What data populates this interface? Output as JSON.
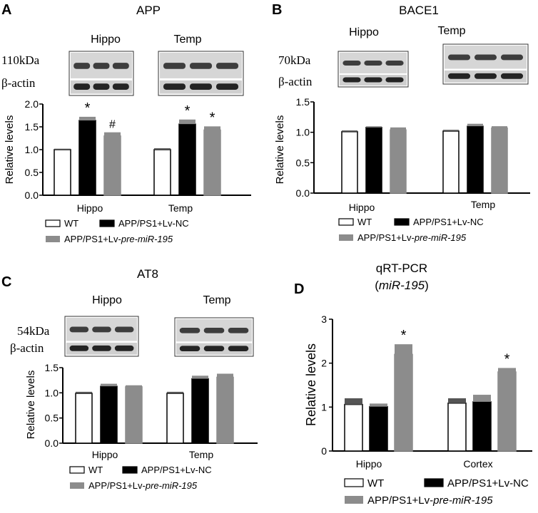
{
  "colors": {
    "wt": "#ffffff",
    "nc": "#000000",
    "mir": "#8c8c8c",
    "err": "#8c8c8c"
  },
  "legend": {
    "wt": "WT",
    "nc": "APP/PS1+Lv-NC",
    "mir_prefix": "APP/PS1+Lv-",
    "mir_italic": "pre-miR-195"
  },
  "panels": [
    {
      "id": "A",
      "label": "A",
      "title": "APP",
      "title_sub": "",
      "blot": {
        "regions": [
          "Hippo",
          "Temp"
        ],
        "kda": "110kDa",
        "actin": "β-actin"
      },
      "chart_data": {
        "type": "bar",
        "categories": [
          "Hippo",
          "Temp"
        ],
        "ylabel": "Relative levels",
        "ylim": [
          0,
          2.0
        ],
        "yticks": [
          "0.0",
          "0.5",
          "1.0",
          "1.5",
          "2.0"
        ],
        "series": [
          {
            "name": "WT",
            "values": [
              1.0,
              1.0
            ],
            "errors": [
              0.02,
              0.03
            ]
          },
          {
            "name": "APP/PS1+Lv-NC",
            "values": [
              1.64,
              1.56
            ],
            "errors": [
              0.08,
              0.1
            ]
          },
          {
            "name": "APP/PS1+Lv-pre-miR-195",
            "values": [
              1.3,
              1.43
            ],
            "errors": [
              0.08,
              0.08
            ]
          }
        ],
        "annotations": [
          [
            "",
            "*",
            "#"
          ],
          [
            "",
            "*",
            "*"
          ]
        ]
      }
    },
    {
      "id": "B",
      "label": "B",
      "title": "BACE1",
      "title_sub": "",
      "blot": {
        "regions": [
          "Hippo",
          "Temp"
        ],
        "kda": "70kDa",
        "actin": "β-actin"
      },
      "chart_data": {
        "type": "bar",
        "categories": [
          "Hippo",
          "Temp"
        ],
        "ylabel": "Relative levels",
        "ylim": [
          0,
          1.5
        ],
        "yticks": [
          "0.0",
          "0.5",
          "1.0",
          "1.5"
        ],
        "series": [
          {
            "name": "WT",
            "values": [
              1.01,
              1.02
            ],
            "errors": [
              0.02,
              0.02
            ]
          },
          {
            "name": "APP/PS1+Lv-NC",
            "values": [
              1.08,
              1.1
            ],
            "errors": [
              0.02,
              0.04
            ]
          },
          {
            "name": "APP/PS1+Lv-pre-miR-195",
            "values": [
              1.04,
              1.07
            ],
            "errors": [
              0.04,
              0.03
            ]
          }
        ],
        "annotations": [
          [
            "",
            "",
            ""
          ],
          [
            "",
            "",
            ""
          ]
        ]
      }
    },
    {
      "id": "C",
      "label": "C",
      "title": "AT8",
      "title_sub": "",
      "blot": {
        "regions": [
          "Hippo",
          "Temp"
        ],
        "kda": "54kDa",
        "actin": "β-actin"
      },
      "chart_data": {
        "type": "bar",
        "categories": [
          "Hippo",
          "Temp"
        ],
        "ylabel": "Relative levels",
        "ylim": [
          0,
          1.5
        ],
        "yticks": [
          "0.0",
          "0.5",
          "1.0",
          "1.5"
        ],
        "series": [
          {
            "name": "WT",
            "values": [
              0.99,
              0.99
            ],
            "errors": [
              0.03,
              0.03
            ]
          },
          {
            "name": "APP/PS1+Lv-NC",
            "values": [
              1.13,
              1.28
            ],
            "errors": [
              0.05,
              0.06
            ]
          },
          {
            "name": "APP/PS1+Lv-pre-miR-195",
            "values": [
              1.12,
              1.31
            ],
            "errors": [
              0.03,
              0.07
            ]
          }
        ],
        "annotations": [
          [
            "",
            "",
            ""
          ],
          [
            "",
            "",
            ""
          ]
        ]
      }
    },
    {
      "id": "D",
      "label": "D",
      "title": "qRT-PCR",
      "title_sub": "miR-195",
      "blot": null,
      "chart_data": {
        "type": "bar",
        "categories": [
          "Hippo",
          "Cortex"
        ],
        "ylabel": "Relative levels",
        "ylim": [
          0,
          3
        ],
        "yticks": [
          "0",
          "1",
          "2",
          "3"
        ],
        "series": [
          {
            "name": "WT",
            "values": [
              1.06,
              1.09
            ],
            "errors": [
              0.14,
              0.11
            ]
          },
          {
            "name": "APP/PS1+Lv-NC",
            "values": [
              1.01,
              1.12
            ],
            "errors": [
              0.07,
              0.16
            ]
          },
          {
            "name": "APP/PS1+Lv-pre-miR-195",
            "values": [
              2.2,
              1.8
            ],
            "errors": [
              0.23,
              0.09
            ]
          }
        ],
        "annotations": [
          [
            "",
            "",
            "*"
          ],
          [
            "",
            "",
            "*"
          ]
        ]
      }
    }
  ]
}
